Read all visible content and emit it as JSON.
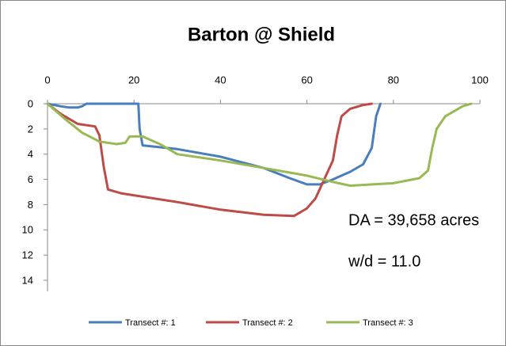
{
  "chart_data": {
    "type": "line",
    "title": "Barton @ Shield",
    "xlim": [
      0,
      100
    ],
    "xticks": [
      0,
      20,
      40,
      60,
      80,
      100
    ],
    "ylim": [
      0,
      14
    ],
    "yticks": [
      0,
      2,
      4,
      6,
      8,
      10,
      12,
      14
    ],
    "y_inverted": true,
    "x_axis_position": "top",
    "grid": false,
    "legend": "bottom",
    "annotations": [
      "DA = 39,658 acres",
      "w/d = 11.0"
    ],
    "series": [
      {
        "name": "Transect #: 1",
        "color": "#4a7ebb",
        "x": [
          0,
          3,
          5,
          7,
          8,
          9,
          21,
          21.3,
          22,
          30,
          40,
          50,
          56,
          60,
          63,
          66,
          70,
          73,
          75,
          76,
          77
        ],
        "values": [
          0,
          0.2,
          0.3,
          0.3,
          0.2,
          0,
          0,
          2,
          3.3,
          3.6,
          4.2,
          5.1,
          5.9,
          6.4,
          6.4,
          6.0,
          5.4,
          4.8,
          3.5,
          1,
          0
        ]
      },
      {
        "name": "Transect #: 2",
        "color": "#be4b48",
        "x": [
          0,
          3,
          7,
          11,
          12,
          13,
          14,
          17,
          30,
          40,
          50,
          57,
          60,
          62,
          64,
          66,
          67,
          68,
          70,
          73,
          75
        ],
        "values": [
          0,
          0.8,
          1.6,
          1.8,
          2.5,
          5,
          6.8,
          7.1,
          7.8,
          8.4,
          8.8,
          8.9,
          8.3,
          7.5,
          6,
          4.5,
          2.5,
          1,
          0.4,
          0.1,
          0
        ]
      },
      {
        "name": "Transect #: 3",
        "color": "#98b954",
        "x": [
          0,
          4,
          8,
          12,
          16,
          18,
          19,
          22,
          26,
          30,
          40,
          50,
          60,
          66,
          70,
          80,
          86,
          88,
          89,
          90,
          92,
          96,
          98
        ],
        "values": [
          0,
          1.2,
          2.3,
          3,
          3.2,
          3.1,
          2.6,
          2.6,
          3.2,
          4,
          4.5,
          5.1,
          5.7,
          6.2,
          6.5,
          6.3,
          5.9,
          5.3,
          3.5,
          2,
          1,
          0.2,
          0
        ]
      }
    ]
  }
}
